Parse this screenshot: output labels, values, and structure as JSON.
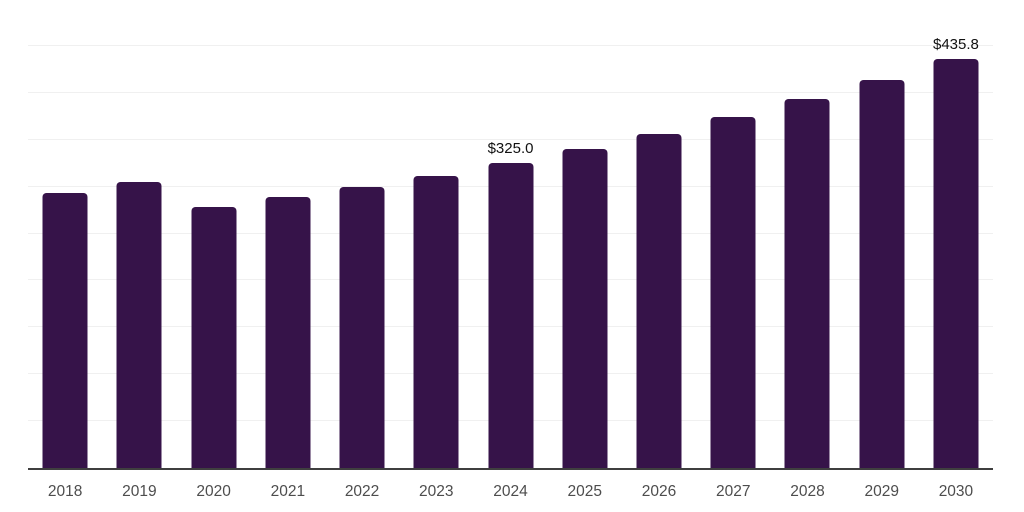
{
  "chart_data": {
    "type": "bar",
    "title": "",
    "xlabel": "",
    "ylabel": "",
    "categories": [
      "2018",
      "2019",
      "2020",
      "2021",
      "2022",
      "2023",
      "2024",
      "2025",
      "2026",
      "2027",
      "2028",
      "2029",
      "2030"
    ],
    "values": [
      293.0,
      304.8,
      278.1,
      288.8,
      299.4,
      311.2,
      325.0,
      339.9,
      356.0,
      374.0,
      393.2,
      413.8,
      435.8
    ],
    "bar_labels": [
      "",
      "",
      "",
      "",
      "",
      "",
      "$325.0",
      "",
      "",
      "",
      "",
      "",
      "$435.8"
    ],
    "ylim": [
      0,
      500
    ],
    "gridline_interval": 50,
    "grid": "horizontal, light, no y-axis tick labels",
    "legend": "none",
    "colors": {
      "bar": "#361349",
      "gridline": "#f0f0f0",
      "axis_line": "#3f3f3f",
      "x_tick_label": "#4d4d4d",
      "value_label": "#111111",
      "background": "#ffffff"
    }
  }
}
